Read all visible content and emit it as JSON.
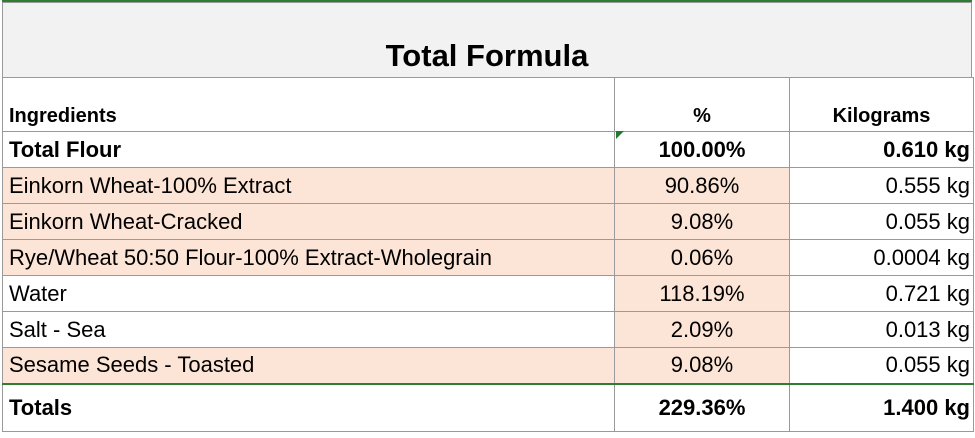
{
  "title": "Total Formula",
  "headers": {
    "ingredients": "Ingredients",
    "percent": "%",
    "kilograms": "Kilograms"
  },
  "rows": [
    {
      "name": "Total Flour",
      "percent": "100.00%",
      "kg": "0.610 kg",
      "bold": true
    },
    {
      "name": "Einkorn Wheat-100% Extract",
      "percent": "90.86%",
      "kg": "0.555 kg"
    },
    {
      "name": "Einkorn Wheat-Cracked",
      "percent": "9.08%",
      "kg": "0.055 kg"
    },
    {
      "name": "Rye/Wheat 50:50 Flour-100% Extract-Wholegrain",
      "percent": "0.06%",
      "kg": "0.0004 kg"
    },
    {
      "name": "Water",
      "percent": "118.19%",
      "kg": "0.721 kg"
    },
    {
      "name": "Salt - Sea",
      "percent": "2.09%",
      "kg": "0.013 kg"
    },
    {
      "name": "Sesame Seeds - Toasted",
      "percent": "9.08%",
      "kg": "0.055 kg"
    }
  ],
  "totals": {
    "label": "Totals",
    "percent": "229.36%",
    "kg": "1.400 kg"
  },
  "colors": {
    "tint": "#fce4d6",
    "grid": "#9a9a9a",
    "accent_green": "#2e7d32"
  }
}
